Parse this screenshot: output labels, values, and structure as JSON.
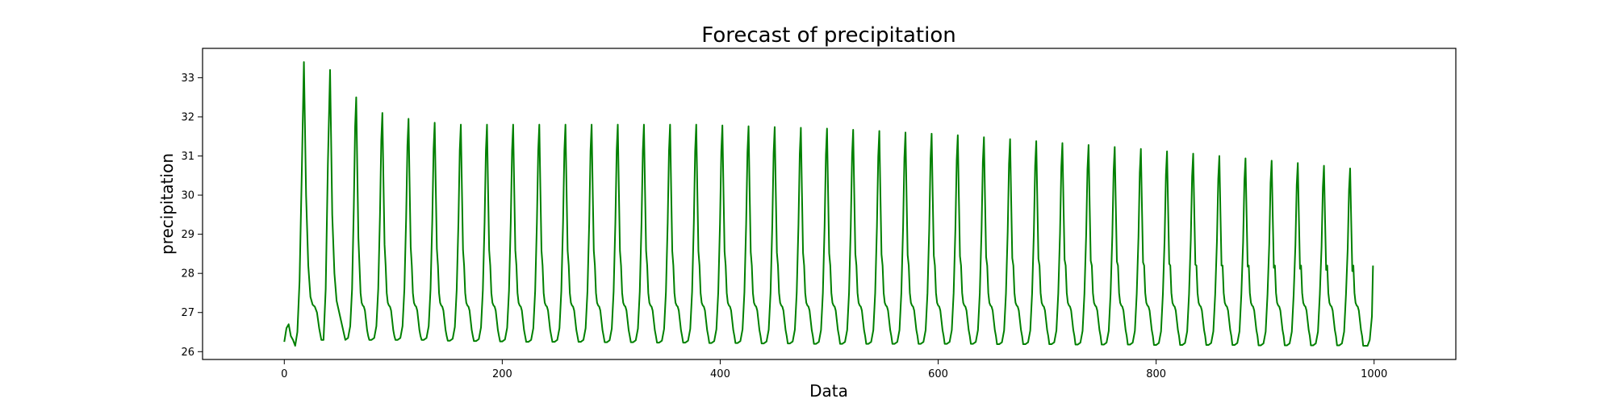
{
  "chart_data": {
    "type": "line",
    "title": "Forecast of precipitation",
    "xlabel": "Data",
    "ylabel": "precipitation",
    "xlim": [
      -75,
      1075
    ],
    "ylim": [
      25.8,
      33.75
    ],
    "xticks": [
      0,
      200,
      400,
      600,
      800,
      1000
    ],
    "yticks": [
      26,
      27,
      28,
      29,
      30,
      31,
      32,
      33
    ],
    "grid": false,
    "color": "#008000",
    "series": [
      {
        "x_start": 0,
        "x_end": 999,
        "period": 24,
        "peak_offset": 18,
        "baseline_start": 26.6,
        "values": [
          [
            0,
            26.25
          ],
          [
            2,
            26.6
          ],
          [
            4,
            26.7
          ],
          [
            6,
            26.4
          ],
          [
            8,
            26.3
          ],
          [
            10,
            26.15
          ],
          [
            12,
            26.5
          ],
          [
            14,
            27.8
          ],
          [
            16,
            30.5
          ],
          [
            18,
            33.4
          ],
          [
            20,
            30.0
          ],
          [
            22,
            28.2
          ],
          [
            24,
            27.4
          ],
          [
            26,
            27.2
          ],
          [
            28,
            27.15
          ],
          [
            30,
            27.0
          ],
          [
            32,
            26.6
          ],
          [
            34,
            26.3
          ],
          [
            36,
            26.3
          ],
          [
            38,
            27.6
          ],
          [
            40,
            30.8
          ],
          [
            42,
            33.2
          ],
          [
            44,
            29.5
          ],
          [
            46,
            28.0
          ],
          [
            48,
            27.3
          ]
        ],
        "peaks": [
          [
            18,
            33.4
          ],
          [
            42,
            33.2
          ],
          [
            66,
            32.5
          ],
          [
            90,
            32.1
          ],
          [
            114,
            31.95
          ],
          [
            138,
            31.85
          ],
          [
            162,
            31.8
          ],
          [
            186,
            31.8
          ],
          [
            210,
            31.8
          ],
          [
            234,
            31.8
          ],
          [
            258,
            31.8
          ],
          [
            282,
            31.8
          ],
          [
            306,
            31.8
          ],
          [
            330,
            31.8
          ],
          [
            354,
            31.8
          ],
          [
            378,
            31.8
          ],
          [
            402,
            31.78
          ],
          [
            426,
            31.76
          ],
          [
            450,
            31.74
          ],
          [
            474,
            31.72
          ],
          [
            498,
            31.7
          ],
          [
            522,
            31.67
          ],
          [
            546,
            31.64
          ],
          [
            570,
            31.6
          ],
          [
            594,
            31.57
          ],
          [
            618,
            31.53
          ],
          [
            642,
            31.48
          ],
          [
            666,
            31.43
          ],
          [
            690,
            31.38
          ],
          [
            714,
            31.33
          ],
          [
            738,
            31.28
          ],
          [
            762,
            31.23
          ],
          [
            786,
            31.18
          ],
          [
            810,
            31.12
          ],
          [
            834,
            31.06
          ],
          [
            858,
            31.0
          ],
          [
            882,
            30.94
          ],
          [
            906,
            30.88
          ],
          [
            930,
            30.82
          ],
          [
            954,
            30.75
          ],
          [
            978,
            30.68
          ]
        ],
        "troughs": [
          [
            32,
            26.3
          ],
          [
            56,
            26.3
          ],
          [
            80,
            26.3
          ],
          [
            104,
            26.3
          ],
          [
            128,
            26.3
          ],
          [
            152,
            26.28
          ],
          [
            176,
            26.27
          ],
          [
            200,
            26.26
          ],
          [
            224,
            26.25
          ],
          [
            248,
            26.25
          ],
          [
            272,
            26.25
          ],
          [
            296,
            26.24
          ],
          [
            320,
            26.24
          ],
          [
            344,
            26.23
          ],
          [
            368,
            26.23
          ],
          [
            392,
            26.22
          ],
          [
            416,
            26.22
          ],
          [
            440,
            26.21
          ],
          [
            464,
            26.21
          ],
          [
            488,
            26.2
          ],
          [
            512,
            26.2
          ],
          [
            536,
            26.2
          ],
          [
            560,
            26.2
          ],
          [
            584,
            26.2
          ],
          [
            608,
            26.2
          ],
          [
            632,
            26.2
          ],
          [
            656,
            26.19
          ],
          [
            680,
            26.19
          ],
          [
            704,
            26.19
          ],
          [
            728,
            26.18
          ],
          [
            752,
            26.18
          ],
          [
            776,
            26.18
          ],
          [
            800,
            26.17
          ],
          [
            824,
            26.17
          ],
          [
            848,
            26.17
          ],
          [
            872,
            26.17
          ],
          [
            896,
            26.16
          ],
          [
            920,
            26.16
          ],
          [
            944,
            26.16
          ],
          [
            968,
            26.16
          ],
          [
            994,
            26.15
          ]
        ],
        "end_value": [
          999,
          28.2
        ]
      }
    ]
  }
}
